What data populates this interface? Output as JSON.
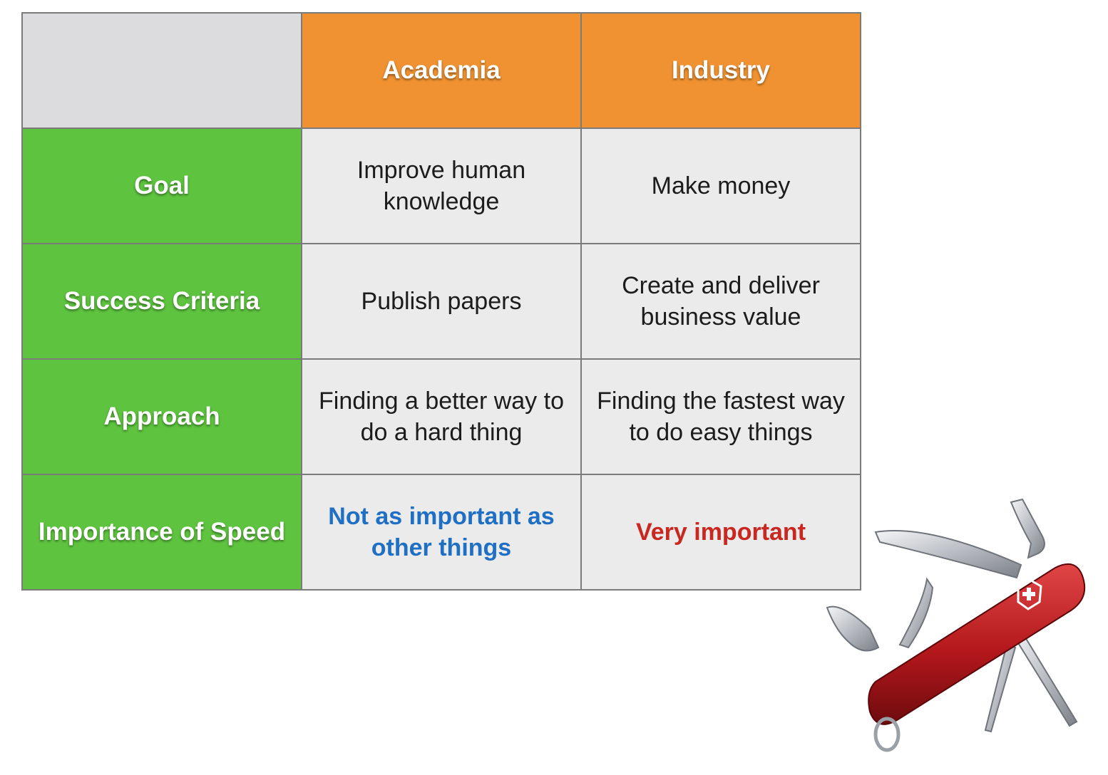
{
  "table": {
    "columns": [
      "",
      "Academia",
      "Industry"
    ],
    "rows": [
      {
        "label": "Goal",
        "academia": "Improve human knowledge",
        "industry": "Make money"
      },
      {
        "label": "Success Criteria",
        "academia": "Publish papers",
        "industry": "Create and deliver business value"
      },
      {
        "label": "Approach",
        "academia": "Finding a better way to do a hard thing",
        "industry": "Finding the fastest way to do easy things"
      },
      {
        "label": "Importance of Speed",
        "academia": "Not as important as other things",
        "industry": "Very important"
      }
    ]
  },
  "colors": {
    "header_orange": "#f09231",
    "row_header_green": "#5ec43f",
    "body_gray": "#ebebeb",
    "corner_gray": "#dcdcde",
    "academia_speed_blue": "#1f6fc4",
    "industry_speed_red": "#c8281f"
  },
  "illustration": {
    "icon": "swiss-army-knife-icon"
  }
}
